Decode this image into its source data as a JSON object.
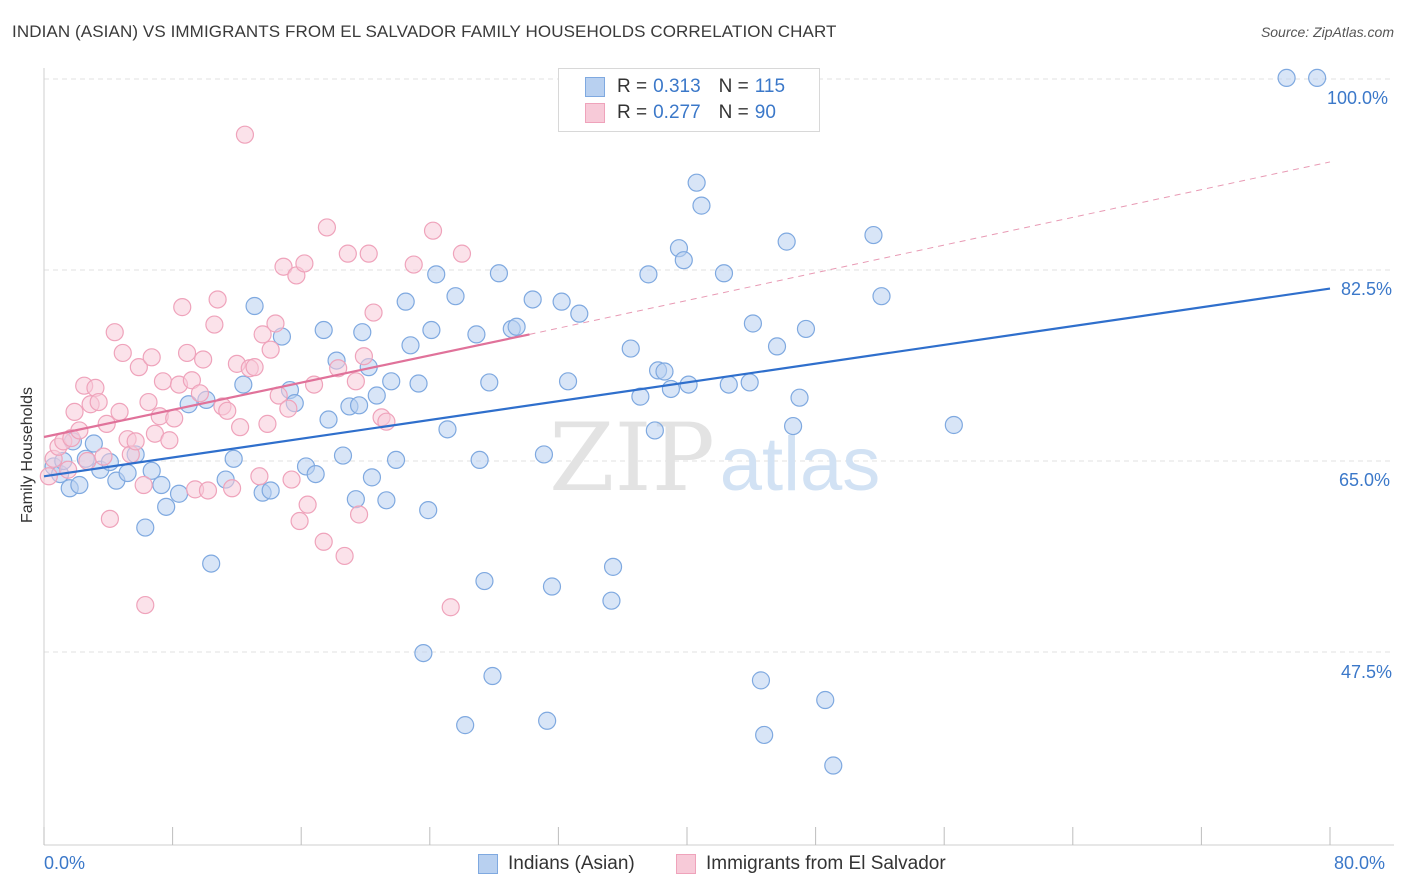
{
  "title": "INDIAN (ASIAN) VS IMMIGRANTS FROM EL SALVADOR FAMILY HOUSEHOLDS CORRELATION CHART",
  "source": "Source: ZipAtlas.com",
  "watermark": {
    "zip": "ZIP",
    "atlas": "atlas"
  },
  "legend": {
    "r_label": "R =",
    "n_label": "N =",
    "series": [
      {
        "r": "0.313",
        "n": "115"
      },
      {
        "r": "0.277",
        "n": "90"
      }
    ]
  },
  "chart_data": {
    "type": "scatter",
    "title": "INDIAN (ASIAN) VS IMMIGRANTS FROM EL SALVADOR FAMILY HOUSEHOLDS CORRELATION CHART",
    "xlabel": "",
    "ylabel": "Family Households",
    "xlim": [
      0,
      80
    ],
    "ylim": [
      30,
      101.5
    ],
    "x_tick_labels": [
      "0.0%",
      "80.0%"
    ],
    "y_ticks": [
      47.5,
      65.0,
      82.5,
      100.0
    ],
    "y_tick_labels": [
      "47.5%",
      "65.0%",
      "82.5%",
      "100.0%"
    ],
    "grid": true,
    "series": [
      {
        "name": "Indians (Asian)",
        "color": "#7fa9e0",
        "fill": "#b8d0f0",
        "trend": {
          "x0": 0,
          "y0": 63.6,
          "x1": 80,
          "y1": 80.8,
          "color": "#2f6fcc"
        },
        "points": [
          [
            0.6,
            64.5
          ],
          [
            1.0,
            63.8
          ],
          [
            1.2,
            65.0
          ],
          [
            1.6,
            62.5
          ],
          [
            1.8,
            66.8
          ],
          [
            2.2,
            62.8
          ],
          [
            2.6,
            65.2
          ],
          [
            3.1,
            66.6
          ],
          [
            3.5,
            64.2
          ],
          [
            4.1,
            64.9
          ],
          [
            4.5,
            63.2
          ],
          [
            5.2,
            63.9
          ],
          [
            5.7,
            65.6
          ],
          [
            6.3,
            58.9
          ],
          [
            6.7,
            64.1
          ],
          [
            7.3,
            62.8
          ],
          [
            7.6,
            60.8
          ],
          [
            8.4,
            62.0
          ],
          [
            9.0,
            70.2
          ],
          [
            10.1,
            70.6
          ],
          [
            10.4,
            55.6
          ],
          [
            11.3,
            63.3
          ],
          [
            11.8,
            65.2
          ],
          [
            12.4,
            72.0
          ],
          [
            13.1,
            79.2
          ],
          [
            13.6,
            62.1
          ],
          [
            14.1,
            62.3
          ],
          [
            14.8,
            76.4
          ],
          [
            15.3,
            71.5
          ],
          [
            15.6,
            70.3
          ],
          [
            16.3,
            64.5
          ],
          [
            16.9,
            63.8
          ],
          [
            17.4,
            77.0
          ],
          [
            17.7,
            68.8
          ],
          [
            18.2,
            74.2
          ],
          [
            18.6,
            65.5
          ],
          [
            19.0,
            70.0
          ],
          [
            19.4,
            61.5
          ],
          [
            19.6,
            70.1
          ],
          [
            19.8,
            76.8
          ],
          [
            20.2,
            73.6
          ],
          [
            20.4,
            63.5
          ],
          [
            20.7,
            71.0
          ],
          [
            21.3,
            61.4
          ],
          [
            21.6,
            72.3
          ],
          [
            21.9,
            65.1
          ],
          [
            22.5,
            79.6
          ],
          [
            22.8,
            75.6
          ],
          [
            23.3,
            72.1
          ],
          [
            23.6,
            47.4
          ],
          [
            23.9,
            60.5
          ],
          [
            24.1,
            77.0
          ],
          [
            24.4,
            82.1
          ],
          [
            25.1,
            67.9
          ],
          [
            25.6,
            80.1
          ],
          [
            26.2,
            40.8
          ],
          [
            26.9,
            76.6
          ],
          [
            27.1,
            65.1
          ],
          [
            27.4,
            54.0
          ],
          [
            27.7,
            72.2
          ],
          [
            27.9,
            45.3
          ],
          [
            28.3,
            82.2
          ],
          [
            29.1,
            77.1
          ],
          [
            29.4,
            77.3
          ],
          [
            30.4,
            79.8
          ],
          [
            31.1,
            65.6
          ],
          [
            31.3,
            41.2
          ],
          [
            31.6,
            53.5
          ],
          [
            32.2,
            79.6
          ],
          [
            32.6,
            72.3
          ],
          [
            33.3,
            78.5
          ],
          [
            35.3,
            52.2
          ],
          [
            35.4,
            55.3
          ],
          [
            36.5,
            75.3
          ],
          [
            37.1,
            70.9
          ],
          [
            37.6,
            82.1
          ],
          [
            38.0,
            67.8
          ],
          [
            38.2,
            73.3
          ],
          [
            38.6,
            73.2
          ],
          [
            39.0,
            71.6
          ],
          [
            39.5,
            84.5
          ],
          [
            39.8,
            83.4
          ],
          [
            40.1,
            72.0
          ],
          [
            40.6,
            90.5
          ],
          [
            40.9,
            88.4
          ],
          [
            42.3,
            82.2
          ],
          [
            42.6,
            72.0
          ],
          [
            43.9,
            72.2
          ],
          [
            44.1,
            77.6
          ],
          [
            44.6,
            44.9
          ],
          [
            44.8,
            39.9
          ],
          [
            45.6,
            75.5
          ],
          [
            46.2,
            85.1
          ],
          [
            46.6,
            68.2
          ],
          [
            47.0,
            70.8
          ],
          [
            47.4,
            77.1
          ],
          [
            48.6,
            43.1
          ],
          [
            49.1,
            37.1
          ],
          [
            51.6,
            85.7
          ],
          [
            52.1,
            80.1
          ],
          [
            56.6,
            68.3
          ],
          [
            77.3,
            100.1
          ],
          [
            79.2,
            100.1
          ]
        ]
      },
      {
        "name": "Immigrants from El Salvador",
        "color": "#efa3bb",
        "fill": "#f7cad8",
        "trend": {
          "x0": 0,
          "y0": 67.2,
          "x1": 30.2,
          "y1": 76.6,
          "color": "#e0729a"
        },
        "dashed_trend": {
          "x0": 30.2,
          "y0": 76.6,
          "x1": 80,
          "y1": 92.4,
          "color": "#e89ab4"
        },
        "points": [
          [
            0.3,
            63.6
          ],
          [
            0.6,
            65.2
          ],
          [
            0.9,
            66.3
          ],
          [
            1.2,
            66.8
          ],
          [
            1.5,
            64.2
          ],
          [
            1.7,
            67.1
          ],
          [
            1.9,
            69.5
          ],
          [
            2.2,
            67.8
          ],
          [
            2.5,
            71.9
          ],
          [
            2.7,
            65.0
          ],
          [
            2.9,
            70.2
          ],
          [
            3.2,
            71.7
          ],
          [
            3.4,
            70.4
          ],
          [
            3.7,
            65.4
          ],
          [
            3.9,
            68.4
          ],
          [
            4.1,
            59.7
          ],
          [
            4.4,
            76.8
          ],
          [
            4.7,
            69.5
          ],
          [
            4.9,
            74.9
          ],
          [
            5.2,
            67.0
          ],
          [
            5.4,
            65.6
          ],
          [
            5.7,
            66.8
          ],
          [
            5.9,
            73.6
          ],
          [
            6.2,
            62.8
          ],
          [
            6.5,
            70.4
          ],
          [
            6.7,
            74.5
          ],
          [
            6.9,
            67.5
          ],
          [
            7.2,
            69.1
          ],
          [
            7.4,
            72.3
          ],
          [
            7.8,
            66.9
          ],
          [
            8.1,
            68.9
          ],
          [
            8.4,
            72.0
          ],
          [
            8.6,
            79.1
          ],
          [
            8.9,
            74.9
          ],
          [
            9.2,
            72.4
          ],
          [
            9.4,
            62.4
          ],
          [
            9.7,
            71.2
          ],
          [
            9.9,
            74.3
          ],
          [
            10.2,
            62.3
          ],
          [
            10.6,
            77.5
          ],
          [
            10.8,
            79.8
          ],
          [
            11.1,
            70.0
          ],
          [
            11.4,
            69.6
          ],
          [
            11.7,
            62.5
          ],
          [
            12.0,
            73.9
          ],
          [
            12.2,
            68.1
          ],
          [
            12.5,
            94.9
          ],
          [
            12.8,
            73.5
          ],
          [
            13.1,
            73.6
          ],
          [
            13.4,
            63.6
          ],
          [
            13.6,
            76.6
          ],
          [
            13.9,
            68.4
          ],
          [
            14.1,
            75.2
          ],
          [
            14.4,
            77.6
          ],
          [
            14.6,
            71.0
          ],
          [
            14.9,
            82.8
          ],
          [
            15.2,
            69.8
          ],
          [
            15.4,
            63.3
          ],
          [
            15.7,
            82.0
          ],
          [
            15.9,
            59.5
          ],
          [
            16.2,
            83.1
          ],
          [
            16.4,
            61.0
          ],
          [
            16.8,
            72.0
          ],
          [
            17.4,
            57.6
          ],
          [
            17.6,
            86.4
          ],
          [
            18.3,
            73.5
          ],
          [
            18.7,
            56.3
          ],
          [
            18.9,
            84.0
          ],
          [
            19.4,
            72.3
          ],
          [
            19.6,
            60.1
          ],
          [
            19.9,
            74.6
          ],
          [
            20.2,
            84.0
          ],
          [
            20.5,
            78.6
          ],
          [
            21.0,
            69.0
          ],
          [
            21.3,
            68.6
          ],
          [
            23.0,
            83.0
          ],
          [
            24.2,
            86.1
          ],
          [
            25.3,
            51.6
          ],
          [
            26.0,
            84.0
          ],
          [
            6.3,
            51.8
          ]
        ]
      }
    ]
  }
}
